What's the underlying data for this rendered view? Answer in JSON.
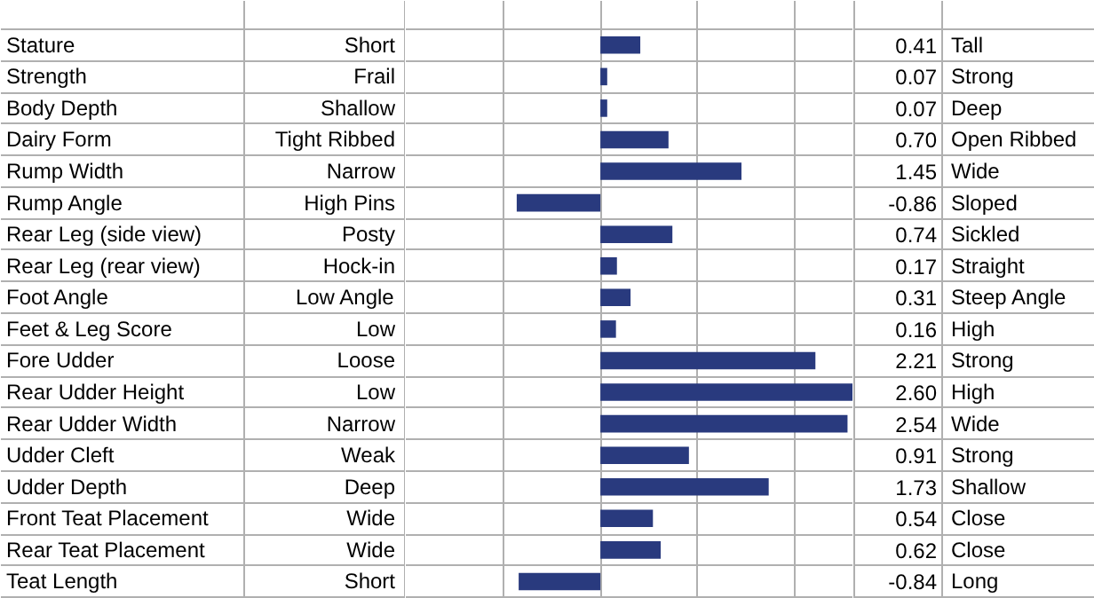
{
  "chart_data": {
    "type": "bar",
    "orientation": "horizontal",
    "categories": [
      "Stature",
      "Strength",
      "Body Depth",
      "Dairy Form",
      "Rump Width",
      "Rump Angle",
      "Rear Leg (side view)",
      "Rear Leg (rear view)",
      "Foot Angle",
      "Feet & Leg Score",
      "Fore Udder",
      "Rear Udder Height",
      "Rear Udder Width",
      "Udder Cleft",
      "Udder Depth",
      "Front Teat Placement",
      "Rear Teat Placement",
      "Teat Length"
    ],
    "values": [
      0.41,
      0.07,
      0.07,
      0.7,
      1.45,
      -0.86,
      0.74,
      0.17,
      0.31,
      0.16,
      2.21,
      2.6,
      2.54,
      0.91,
      1.73,
      0.54,
      0.62,
      -0.84
    ],
    "value_labels": [
      "0.41",
      "0.07",
      "0.07",
      "0.70",
      "1.45",
      "-0.86",
      "0.74",
      "0.17",
      "0.31",
      "0.16",
      "2.21",
      "2.60",
      "2.54",
      "0.91",
      "1.73",
      "0.54",
      "0.62",
      "-0.84"
    ],
    "color": "#293a7e",
    "xlim": [
      -2,
      2.6
    ],
    "xticks": [
      {
        "value": -2,
        "label": null
      },
      {
        "value": -1,
        "label": null
      },
      {
        "value": 0,
        "label": null
      },
      {
        "value": 1,
        "label": null
      },
      {
        "value": 2,
        "label": null
      }
    ],
    "grid": "x",
    "annotations": [
      "Short",
      "Tall",
      "Frail",
      "Strong",
      "Shallow",
      "Deep",
      "Tight Ribbed",
      "Open Ribbed",
      "Narrow",
      "Wide",
      "High Pins",
      "Sloped",
      "Posty",
      "Sickled",
      "Hock-in",
      "Straight",
      "Low Angle",
      "Steep Angle",
      "Low",
      "High",
      "Loose",
      "Strong",
      "Low",
      "High",
      "Narrow",
      "Wide",
      "Weak",
      "Strong",
      "Deep",
      "Shallow",
      "Wide",
      "Close",
      "Wide",
      "Close",
      "Short",
      "Long"
    ]
  }
}
